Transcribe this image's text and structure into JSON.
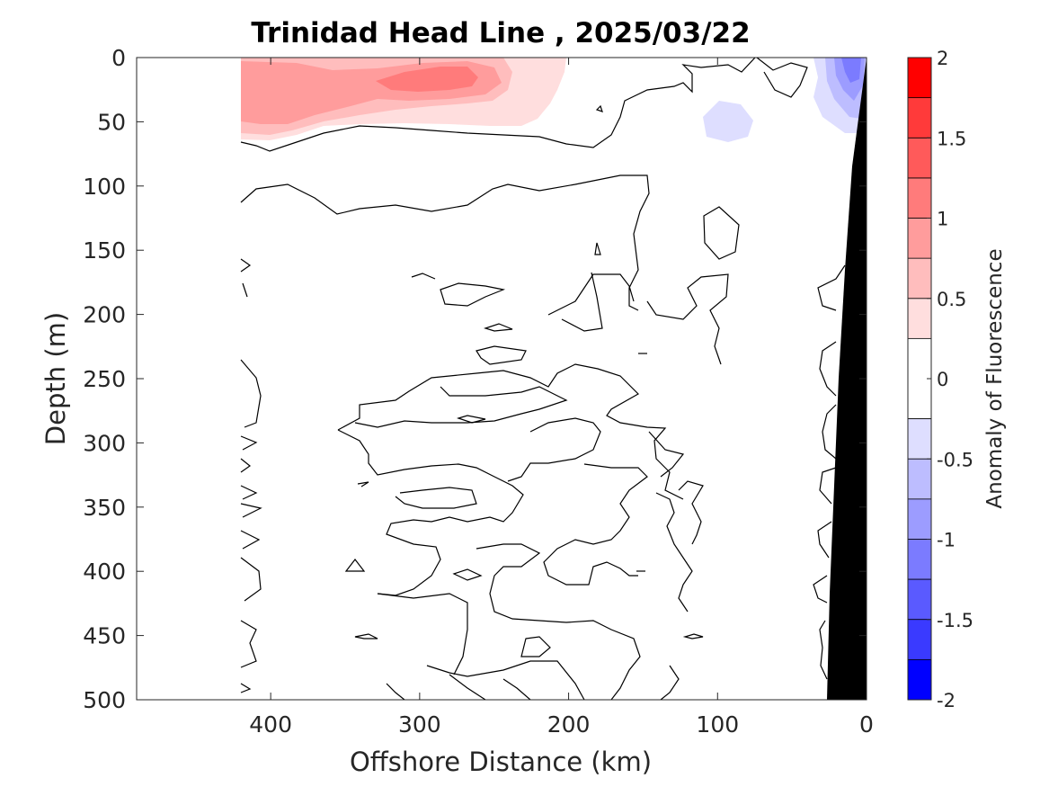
{
  "chart_data": {
    "type": "contour",
    "title": "Trinidad Head Line , 2025/03/22",
    "xlabel": "Offshore Distance (km)",
    "ylabel": "Depth (m)",
    "xlim": [
      490,
      0
    ],
    "ylim": [
      0,
      500
    ],
    "x_reversed": true,
    "y_reversed": true,
    "xticks": [
      400,
      300,
      200,
      100,
      0
    ],
    "yticks": [
      0,
      50,
      100,
      150,
      200,
      250,
      300,
      350,
      400,
      450,
      500
    ],
    "colorbar": {
      "label": "Anomaly of Fluorescence",
      "range": [
        -2,
        2
      ],
      "levels": [
        -2,
        -1.75,
        -1.5,
        -1.25,
        -1,
        -0.75,
        -0.5,
        -0.25,
        0.25,
        0.5,
        0.75,
        1,
        1.25,
        1.5,
        1.75,
        2
      ],
      "ticks": [
        "2",
        "1.5",
        "1",
        "0.5",
        "0",
        "-0.5",
        "-1",
        "-1.5",
        "-2"
      ],
      "colors": {
        "positive": [
          "#ffdede",
          "#ffbdbd",
          "#ff9c9c",
          "#ff7b7b",
          "#ff5a5a",
          "#ff3a3a",
          "#ff0000"
        ],
        "negative": [
          "#dedeff",
          "#bdbdff",
          "#9c9cff",
          "#7b7bff",
          "#5a5aff",
          "#3a3aff",
          "#0000ff"
        ]
      }
    },
    "features": [
      {
        "name": "surface positive anomaly",
        "x_range_km": [
          420,
          200
        ],
        "depth_range_m": [
          0,
          65
        ],
        "peak_value": 1.0,
        "peak_location": {
          "x_km": 285,
          "depth_m": 18
        }
      },
      {
        "name": "nearshore surface negative anomaly",
        "x_range_km": [
          40,
          10
        ],
        "depth_range_m": [
          0,
          55
        ],
        "peak_value": -1.25
      },
      {
        "name": "offshore negative patch",
        "x_range_km": [
          115,
          85
        ],
        "depth_range_m": [
          30,
          65
        ],
        "peak_value": -0.5
      },
      {
        "name": "bathymetry",
        "color": "#000000"
      }
    ],
    "data_extent_km": [
      420,
      0
    ],
    "grid": false
  }
}
